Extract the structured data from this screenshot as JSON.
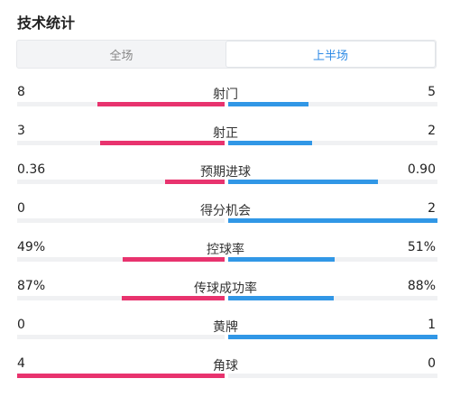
{
  "title": "技术统计",
  "tabs": [
    {
      "label": "全场",
      "active": false
    },
    {
      "label": "上半场",
      "active": true
    }
  ],
  "colors": {
    "home": "#e8336e",
    "away": "#3197e6",
    "active_tab": "#2f8be6"
  },
  "stats": [
    {
      "label": "射门",
      "home": "8",
      "away": "5",
      "home_share": 0.615,
      "away_share": 0.385
    },
    {
      "label": "射正",
      "home": "3",
      "away": "2",
      "home_share": 0.6,
      "away_share": 0.4
    },
    {
      "label": "预期进球",
      "home": "0.36",
      "away": "0.90",
      "home_share": 0.286,
      "away_share": 0.714
    },
    {
      "label": "得分机会",
      "home": "0",
      "away": "2",
      "home_share": 0.0,
      "away_share": 1.0
    },
    {
      "label": "控球率",
      "home": "49%",
      "away": "51%",
      "home_share": 0.49,
      "away_share": 0.51
    },
    {
      "label": "传球成功率",
      "home": "87%",
      "away": "88%",
      "home_share": 0.497,
      "away_share": 0.503
    },
    {
      "label": "黄牌",
      "home": "0",
      "away": "1",
      "home_share": 0.0,
      "away_share": 1.0
    },
    {
      "label": "角球",
      "home": "4",
      "away": "0",
      "home_share": 1.0,
      "away_share": 0.0
    }
  ]
}
